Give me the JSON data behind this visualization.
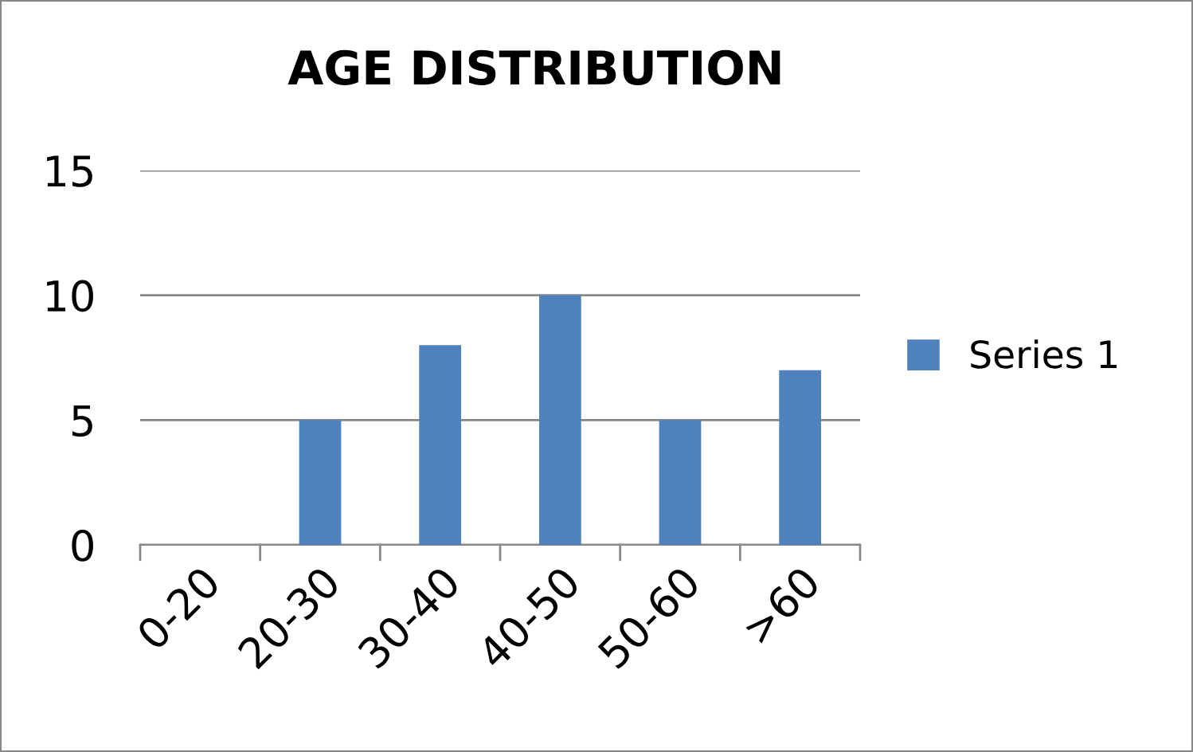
{
  "chart_data": {
    "type": "bar",
    "title": "AGE DISTRIBUTION",
    "categories": [
      "0-20",
      "20-30",
      "30-40",
      "40-50",
      "50-60",
      ">60"
    ],
    "series": [
      {
        "name": "Series 1",
        "color": "#4f81bd",
        "values": [
          0,
          5,
          8,
          10,
          5,
          7
        ]
      }
    ],
    "ylim": [
      0,
      15
    ],
    "yticks": [
      0,
      5,
      10,
      15
    ],
    "grid": "y",
    "legend": "right"
  }
}
